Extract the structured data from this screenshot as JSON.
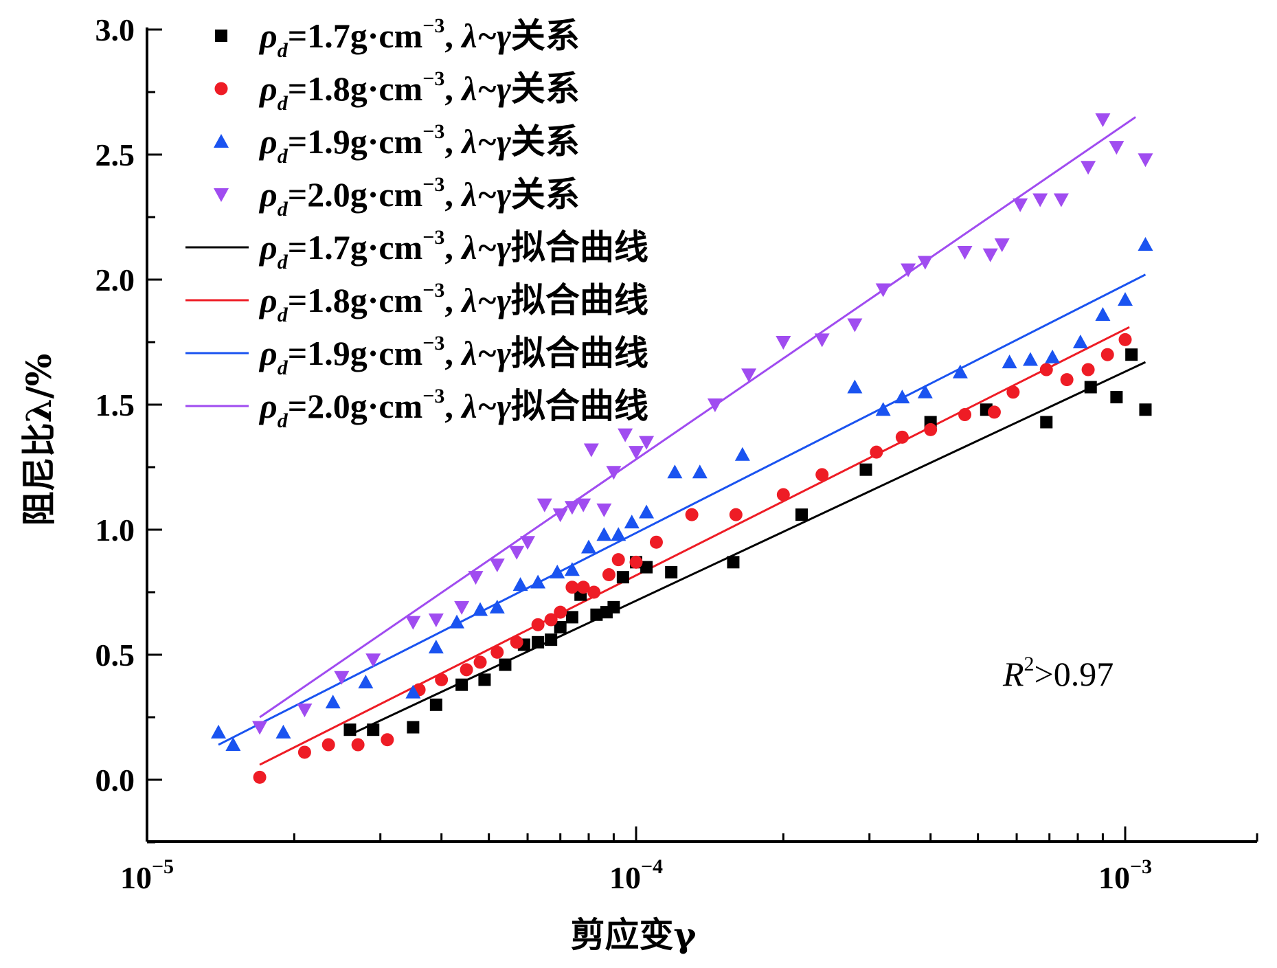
{
  "chart_data": {
    "type": "scatter",
    "x_scale": "log",
    "xlabel": "剪应变γ",
    "ylabel": "阻尼比λ/%",
    "xlim": [
      1e-05,
      0.002
    ],
    "ylim": [
      -0.25,
      3.0
    ],
    "x_ticks": [
      {
        "value": 1e-05,
        "base": "10",
        "exp": "−5"
      },
      {
        "value": 0.0001,
        "base": "10",
        "exp": "−4"
      },
      {
        "value": 0.001,
        "base": "10",
        "exp": "−3"
      }
    ],
    "y_ticks": [
      "0.0",
      "0.5",
      "1.0",
      "1.5",
      "2.0",
      "2.5",
      "3.0"
    ],
    "annotation": {
      "main": "R",
      "sup": "2",
      "rest": ">0.97"
    },
    "legend_position": "top-left",
    "series": [
      {
        "name": "ρd=1.7g·cm−3, λ~γ关系",
        "legend_parts": {
          "rho": "ρ",
          "sub": "d",
          "mid": "=1.7g·cm",
          "sup": "−3",
          "after": ", ",
          "lam": "λ~γ",
          "cn": "关系"
        },
        "marker": "square",
        "color": "#000000",
        "points": [
          [
            2.6e-05,
            0.2
          ],
          [
            2.9e-05,
            0.2
          ],
          [
            3.5e-05,
            0.21
          ],
          [
            3.9e-05,
            0.3
          ],
          [
            4.4e-05,
            0.38
          ],
          [
            4.9e-05,
            0.4
          ],
          [
            5.4e-05,
            0.46
          ],
          [
            5.9e-05,
            0.54
          ],
          [
            6.3e-05,
            0.55
          ],
          [
            6.7e-05,
            0.56
          ],
          [
            7e-05,
            0.61
          ],
          [
            7.4e-05,
            0.65
          ],
          [
            7.7e-05,
            0.74
          ],
          [
            8.3e-05,
            0.66
          ],
          [
            8.7e-05,
            0.67
          ],
          [
            9e-05,
            0.69
          ],
          [
            9.4e-05,
            0.81
          ],
          [
            0.0001,
            0.87
          ],
          [
            0.000105,
            0.85
          ],
          [
            0.000118,
            0.83
          ],
          [
            0.000158,
            0.87
          ],
          [
            0.000218,
            1.06
          ],
          [
            0.000295,
            1.24
          ],
          [
            0.0004,
            1.43
          ],
          [
            0.00052,
            1.48
          ],
          [
            0.00069,
            1.43
          ],
          [
            0.00085,
            1.57
          ],
          [
            0.00096,
            1.53
          ],
          [
            0.00103,
            1.7
          ],
          [
            0.0011,
            1.48
          ]
        ]
      },
      {
        "name": "ρd=1.8g·cm−3, λ~γ关系",
        "legend_parts": {
          "rho": "ρ",
          "sub": "d",
          "mid": "=1.8g·cm",
          "sup": "−3",
          "after": ", ",
          "lam": "λ~γ",
          "cn": "关系"
        },
        "marker": "circle",
        "color": "#ee1c25",
        "points": [
          [
            1.7e-05,
            0.01
          ],
          [
            2.1e-05,
            0.11
          ],
          [
            2.35e-05,
            0.14
          ],
          [
            2.7e-05,
            0.14
          ],
          [
            3.1e-05,
            0.16
          ],
          [
            3.6e-05,
            0.36
          ],
          [
            4e-05,
            0.4
          ],
          [
            4.5e-05,
            0.44
          ],
          [
            4.8e-05,
            0.47
          ],
          [
            5.2e-05,
            0.51
          ],
          [
            5.7e-05,
            0.55
          ],
          [
            6.3e-05,
            0.62
          ],
          [
            6.7e-05,
            0.64
          ],
          [
            7e-05,
            0.67
          ],
          [
            7.4e-05,
            0.77
          ],
          [
            7.8e-05,
            0.77
          ],
          [
            8.2e-05,
            0.75
          ],
          [
            8.8e-05,
            0.82
          ],
          [
            9.2e-05,
            0.88
          ],
          [
            0.0001,
            0.87
          ],
          [
            0.00011,
            0.95
          ],
          [
            0.00013,
            1.06
          ],
          [
            0.00016,
            1.06
          ],
          [
            0.0002,
            1.14
          ],
          [
            0.00024,
            1.22
          ],
          [
            0.00031,
            1.31
          ],
          [
            0.00035,
            1.37
          ],
          [
            0.0004,
            1.4
          ],
          [
            0.00047,
            1.46
          ],
          [
            0.00054,
            1.47
          ],
          [
            0.00059,
            1.55
          ],
          [
            0.00069,
            1.64
          ],
          [
            0.00076,
            1.6
          ],
          [
            0.00084,
            1.64
          ],
          [
            0.00092,
            1.7
          ],
          [
            0.001,
            1.76
          ]
        ]
      },
      {
        "name": "ρd=1.9g·cm−3, λ~γ关系",
        "legend_parts": {
          "rho": "ρ",
          "sub": "d",
          "mid": "=1.9g·cm",
          "sup": "−3",
          "after": ", ",
          "lam": "λ~γ",
          "cn": "关系"
        },
        "marker": "triangle-up",
        "color": "#1a53f0",
        "points": [
          [
            1.4e-05,
            0.19
          ],
          [
            1.5e-05,
            0.14
          ],
          [
            1.9e-05,
            0.19
          ],
          [
            2.4e-05,
            0.31
          ],
          [
            2.8e-05,
            0.39
          ],
          [
            3.5e-05,
            0.35
          ],
          [
            3.9e-05,
            0.53
          ],
          [
            4.3e-05,
            0.63
          ],
          [
            4.8e-05,
            0.68
          ],
          [
            5.2e-05,
            0.69
          ],
          [
            5.8e-05,
            0.78
          ],
          [
            6.3e-05,
            0.79
          ],
          [
            6.9e-05,
            0.83
          ],
          [
            7.4e-05,
            0.84
          ],
          [
            8e-05,
            0.93
          ],
          [
            8.6e-05,
            0.98
          ],
          [
            9.2e-05,
            0.98
          ],
          [
            9.8e-05,
            1.03
          ],
          [
            0.000105,
            1.07
          ],
          [
            0.00012,
            1.23
          ],
          [
            0.000135,
            1.23
          ],
          [
            0.000165,
            1.3
          ],
          [
            0.00028,
            1.57
          ],
          [
            0.00032,
            1.48
          ],
          [
            0.00035,
            1.53
          ],
          [
            0.00039,
            1.55
          ],
          [
            0.00046,
            1.63
          ],
          [
            0.00058,
            1.67
          ],
          [
            0.00064,
            1.68
          ],
          [
            0.00071,
            1.69
          ],
          [
            0.00081,
            1.75
          ],
          [
            0.0009,
            1.86
          ],
          [
            0.001,
            1.92
          ],
          [
            0.0011,
            2.14
          ]
        ]
      },
      {
        "name": "ρd=2.0g·cm−3, λ~γ关系",
        "legend_parts": {
          "rho": "ρ",
          "sub": "d",
          "mid": "=2.0g·cm",
          "sup": "−3",
          "after": ", ",
          "lam": "λ~γ",
          "cn": "关系"
        },
        "marker": "triangle-down",
        "color": "#a04cf0",
        "points": [
          [
            1.7e-05,
            0.21
          ],
          [
            2.1e-05,
            0.28
          ],
          [
            2.5e-05,
            0.41
          ],
          [
            2.9e-05,
            0.48
          ],
          [
            3.5e-05,
            0.63
          ],
          [
            3.9e-05,
            0.64
          ],
          [
            4.4e-05,
            0.69
          ],
          [
            4.7e-05,
            0.81
          ],
          [
            5.2e-05,
            0.86
          ],
          [
            5.7e-05,
            0.91
          ],
          [
            6e-05,
            0.95
          ],
          [
            6.5e-05,
            1.1
          ],
          [
            7e-05,
            1.06
          ],
          [
            7.4e-05,
            1.09
          ],
          [
            7.8e-05,
            1.1
          ],
          [
            8.1e-05,
            1.32
          ],
          [
            8.6e-05,
            1.08
          ],
          [
            9e-05,
            1.23
          ],
          [
            9.5e-05,
            1.38
          ],
          [
            0.0001,
            1.31
          ],
          [
            0.000105,
            1.35
          ],
          [
            0.000145,
            1.5
          ],
          [
            0.00017,
            1.62
          ],
          [
            0.0002,
            1.75
          ],
          [
            0.00024,
            1.76
          ],
          [
            0.00028,
            1.82
          ],
          [
            0.00032,
            1.96
          ],
          [
            0.00036,
            2.04
          ],
          [
            0.00039,
            2.07
          ],
          [
            0.00047,
            2.11
          ],
          [
            0.00053,
            2.1
          ],
          [
            0.00056,
            2.14
          ],
          [
            0.00061,
            2.3
          ],
          [
            0.00067,
            2.32
          ],
          [
            0.00074,
            2.32
          ],
          [
            0.00084,
            2.45
          ],
          [
            0.0009,
            2.64
          ],
          [
            0.00096,
            2.53
          ],
          [
            0.0011,
            2.48
          ]
        ]
      }
    ],
    "fit_lines": [
      {
        "name": "ρd=1.7g·cm−3, λ~γ拟合曲线",
        "legend_parts": {
          "rho": "ρ",
          "sub": "d",
          "mid": "=1.7g·cm",
          "sup": "−3",
          "after": ", ",
          "lam": "λ~γ",
          "cn": "拟合曲线"
        },
        "color": "#000000",
        "x": [
          2.6e-05,
          0.0011
        ],
        "y": [
          0.18,
          1.67
        ]
      },
      {
        "name": "ρd=1.8g·cm−3, λ~γ拟合曲线",
        "legend_parts": {
          "rho": "ρ",
          "sub": "d",
          "mid": "=1.8g·cm",
          "sup": "−3",
          "after": ", ",
          "lam": "λ~γ",
          "cn": "拟合曲线"
        },
        "color": "#ee1c25",
        "x": [
          1.7e-05,
          0.00102
        ],
        "y": [
          0.06,
          1.81
        ]
      },
      {
        "name": "ρd=1.9g·cm−3, λ~γ拟合曲线",
        "legend_parts": {
          "rho": "ρ",
          "sub": "d",
          "mid": "=1.9g·cm",
          "sup": "−3",
          "after": ", ",
          "lam": "λ~γ",
          "cn": "拟合曲线"
        },
        "color": "#1a53f0",
        "x": [
          1.4e-05,
          0.0011
        ],
        "y": [
          0.14,
          2.02
        ]
      },
      {
        "name": "ρd=2.0g·cm−3, λ~γ拟合曲线",
        "legend_parts": {
          "rho": "ρ",
          "sub": "d",
          "mid": "=2.0g·cm",
          "sup": "−3",
          "after": ", ",
          "lam": "λ~γ",
          "cn": "拟合曲线"
        },
        "color": "#a04cf0",
        "x": [
          1.7e-05,
          0.00105
        ],
        "y": [
          0.25,
          2.65
        ]
      }
    ]
  }
}
